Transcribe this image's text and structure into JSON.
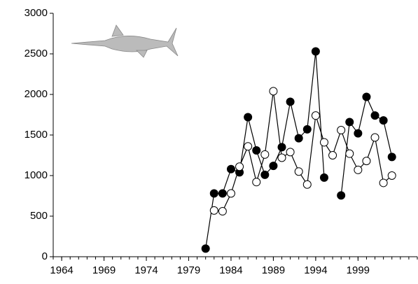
{
  "chart_data": {
    "type": "line",
    "x": [
      1981,
      1982,
      1983,
      1984,
      1985,
      1986,
      1987,
      1988,
      1989,
      1990,
      1991,
      1992,
      1993,
      1994,
      1995,
      1996,
      1997,
      1998,
      1999,
      2000,
      2001,
      2002,
      2003
    ],
    "series": [
      {
        "color": "#000000",
        "values": [
          100,
          780,
          780,
          1080,
          1040,
          1720,
          1310,
          1010,
          1120,
          1350,
          1910,
          1460,
          1570,
          2530,
          975,
          null,
          755,
          1660,
          1520,
          1970,
          1740,
          1680,
          1230
        ]
      },
      {
        "color": "#ffffff",
        "values": [
          null,
          570,
          560,
          780,
          1110,
          1360,
          920,
          1260,
          2040,
          1220,
          1290,
          1050,
          890,
          1740,
          1410,
          1250,
          1560,
          1270,
          1070,
          1180,
          1470,
          910,
          1000
        ]
      }
    ],
    "xlim": [
      1963,
      2006
    ],
    "xticks": [
      1964,
      1969,
      1974,
      1979,
      1984,
      1989,
      1994,
      1999
    ],
    "ylim": [
      0,
      3000
    ],
    "yticks": [
      0,
      500,
      1000,
      1500,
      2000,
      2500,
      3000
    ]
  }
}
